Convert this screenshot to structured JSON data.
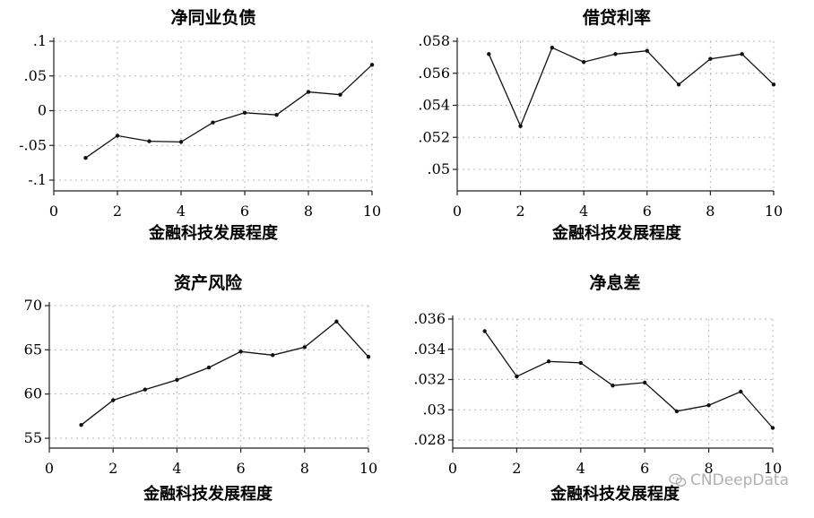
{
  "watermark": "CNDeepData",
  "chart_data": [
    {
      "type": "line",
      "title": "净同业负债",
      "xlabel": "金融科技发展程度",
      "xlim": [
        0,
        10
      ],
      "xticks": [
        0,
        2,
        4,
        6,
        8,
        10
      ],
      "xtick_labels": [
        "0",
        "2",
        "4",
        "6",
        "8",
        "10"
      ],
      "ylim": [
        -0.1,
        0.1
      ],
      "yticks": [
        -0.1,
        -0.05,
        0,
        0.05,
        0.1
      ],
      "ytick_labels": [
        "-.1",
        "-.05",
        "0",
        ".05",
        ".1"
      ],
      "x": [
        1,
        2,
        3,
        4,
        5,
        6,
        7,
        8,
        9,
        10
      ],
      "values": [
        -0.068,
        -0.036,
        -0.044,
        -0.045,
        -0.017,
        -0.003,
        -0.006,
        0.027,
        0.023,
        0.066
      ],
      "grid": true
    },
    {
      "type": "line",
      "title": "借贷利率",
      "xlabel": "金融科技发展程度",
      "xlim": [
        0,
        10
      ],
      "xticks": [
        0,
        2,
        4,
        6,
        8,
        10
      ],
      "xtick_labels": [
        "0",
        "2",
        "4",
        "6",
        "8",
        "10"
      ],
      "ylim": [
        0.05,
        0.058
      ],
      "yticks": [
        0.05,
        0.052,
        0.054,
        0.056,
        0.058
      ],
      "ytick_labels": [
        ".05",
        ".052",
        ".054",
        ".056",
        ".058"
      ],
      "x": [
        1,
        2,
        3,
        4,
        5,
        6,
        7,
        8,
        9,
        10
      ],
      "values": [
        0.0572,
        0.0527,
        0.0576,
        0.0567,
        0.0572,
        0.0574,
        0.0553,
        0.0569,
        0.0572,
        0.0553
      ],
      "grid": true
    },
    {
      "type": "line",
      "title": "资产风险",
      "xlabel": "金融科技发展程度",
      "xlim": [
        0,
        10
      ],
      "xticks": [
        0,
        2,
        4,
        6,
        8,
        10
      ],
      "xtick_labels": [
        "0",
        "2",
        "4",
        "6",
        "8",
        "10"
      ],
      "ylim": [
        55,
        70
      ],
      "yticks": [
        55,
        60,
        65,
        70
      ],
      "ytick_labels": [
        "55",
        "60",
        "65",
        "70"
      ],
      "x": [
        1,
        2,
        3,
        4,
        5,
        6,
        7,
        8,
        9,
        10
      ],
      "values": [
        56.5,
        59.3,
        60.5,
        61.6,
        63.0,
        64.8,
        64.4,
        65.3,
        68.2,
        64.2
      ],
      "grid": true
    },
    {
      "type": "line",
      "title": "净息差",
      "xlabel": "金融科技发展程度",
      "xlim": [
        0,
        10
      ],
      "xticks": [
        0,
        2,
        4,
        6,
        8,
        10
      ],
      "xtick_labels": [
        "0",
        "2",
        "4",
        "6",
        "8",
        "10"
      ],
      "ylim": [
        0.028,
        0.036
      ],
      "yticks": [
        0.028,
        0.03,
        0.032,
        0.034,
        0.036
      ],
      "ytick_labels": [
        ".028",
        ".03",
        ".032",
        ".034",
        ".036"
      ],
      "x": [
        1,
        2,
        3,
        4,
        5,
        6,
        7,
        8,
        9,
        10
      ],
      "values": [
        0.0352,
        0.0322,
        0.0332,
        0.0331,
        0.0316,
        0.0318,
        0.0299,
        0.0303,
        0.0312,
        0.0288
      ],
      "grid": true
    }
  ]
}
